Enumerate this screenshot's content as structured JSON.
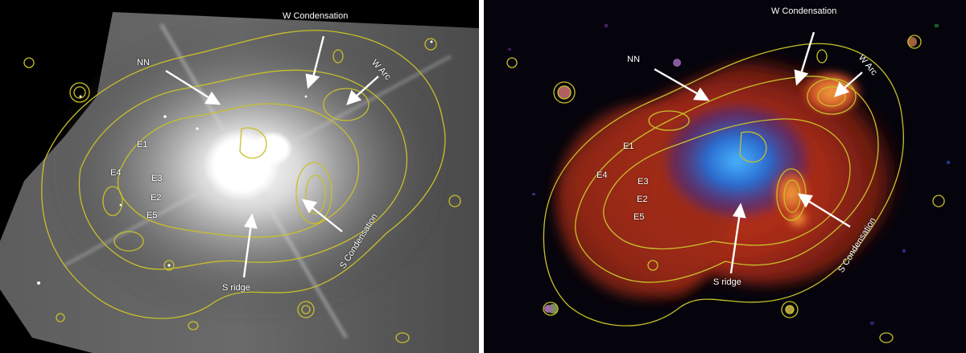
{
  "left_panel": {
    "labels": {
      "w_condensation": "W Condensation",
      "nn": "NN",
      "w_arc": "W Arc",
      "e1": "E1",
      "e4": "E4",
      "e3": "E3",
      "e2": "E2",
      "e5": "E5",
      "s_condensation": "S Condensation",
      "s_ridge": "S ridge"
    }
  },
  "right_panel": {
    "labels": {
      "w_condensation": "W Condensation",
      "nn": "NN",
      "w_arc": "W Arc",
      "e1": "E1",
      "e4": "E4",
      "e3": "E3",
      "e2": "E2",
      "e5": "E5",
      "s_condensation": "S Condensation",
      "s_ridge": "S ridge"
    }
  },
  "colors": {
    "contour": "#c8c02a",
    "arrow": "#ffffff"
  }
}
